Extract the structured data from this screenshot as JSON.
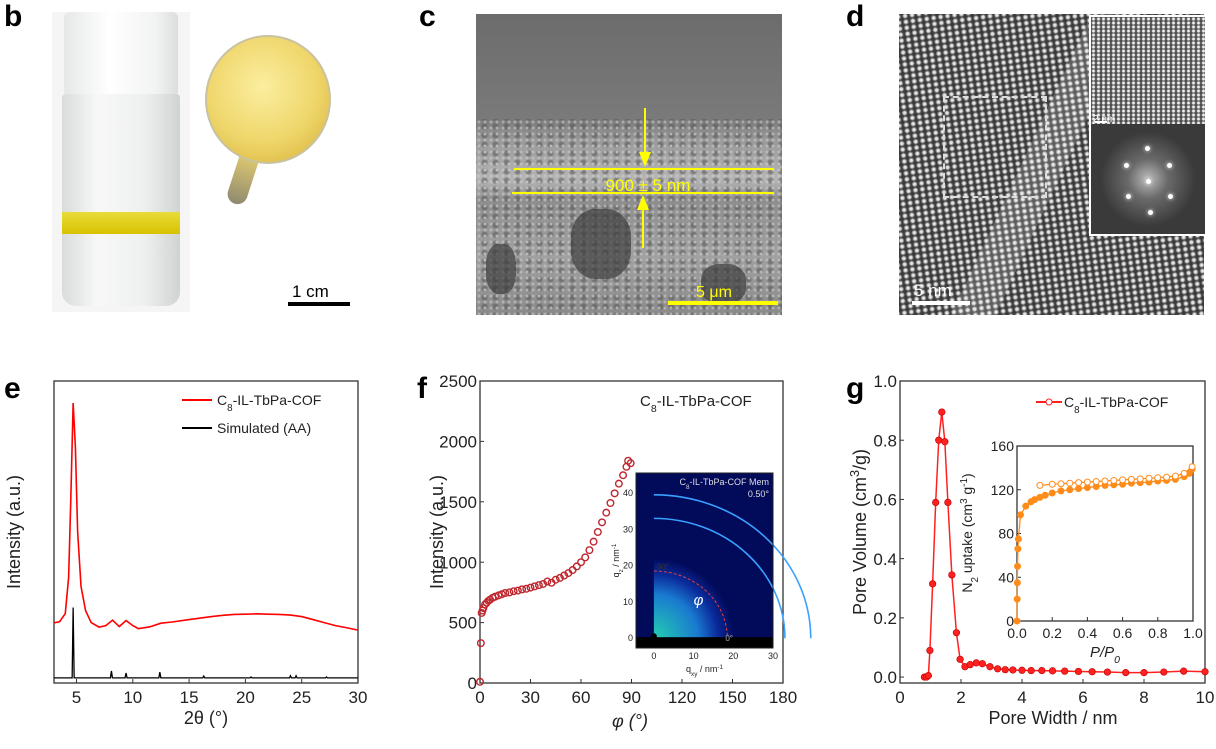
{
  "panels": {
    "b": {
      "label": "b",
      "scale_bar": "1 cm"
    },
    "c": {
      "label": "c",
      "thickness": "900 ± 5 nm",
      "scale_bar": "5 μm",
      "annotation_color": "#ffff00"
    },
    "d": {
      "label": "d",
      "scale_bar": "5 nm",
      "inset_scale_bar": "2 nm"
    },
    "e": {
      "label": "e"
    },
    "f": {
      "label": "f"
    },
    "g": {
      "label": "g"
    }
  },
  "chart_data": [
    {
      "panel": "e",
      "type": "line",
      "xlabel": "2θ (°)",
      "ylabel": "Intensity (a.u.)",
      "xlim": [
        3,
        30
      ],
      "ylim": [
        0,
        100
      ],
      "xticks": [
        "5",
        "10",
        "15",
        "20",
        "25",
        "30"
      ],
      "xtick_values": [
        5,
        10,
        15,
        20,
        25,
        30
      ],
      "grid": false,
      "legend_position": "top-right",
      "series": [
        {
          "name": {
            "prefix": "C",
            "sub": "8",
            "suffix": "-IL-TbPa-COF"
          },
          "color": "#ff0000",
          "points": [
            [
              3,
              19.9
            ],
            [
              3.5,
              20.3
            ],
            [
              4,
              23
            ],
            [
              4.3,
              35
            ],
            [
              4.5,
              62
            ],
            [
              4.7,
              92.7
            ],
            [
              4.9,
              78
            ],
            [
              5.1,
              50
            ],
            [
              5.4,
              32
            ],
            [
              5.8,
              24
            ],
            [
              6.3,
              20
            ],
            [
              7,
              18.5
            ],
            [
              7.6,
              19
            ],
            [
              8.2,
              20.8
            ],
            [
              8.8,
              18.7
            ],
            [
              9.4,
              20.7
            ],
            [
              10,
              19
            ],
            [
              10.5,
              18
            ],
            [
              11.5,
              18.6
            ],
            [
              12.5,
              19.8
            ],
            [
              13.5,
              20.2
            ],
            [
              15,
              21
            ],
            [
              16,
              21.5
            ],
            [
              17,
              22
            ],
            [
              18,
              22.4
            ],
            [
              19,
              22.7
            ],
            [
              20,
              22.8
            ],
            [
              21,
              22.9
            ],
            [
              22,
              22.8
            ],
            [
              23,
              22.7
            ],
            [
              24,
              22.5
            ],
            [
              25,
              22
            ],
            [
              26,
              21
            ],
            [
              27,
              20
            ],
            [
              28,
              19
            ],
            [
              29,
              18.3
            ],
            [
              30,
              17.5
            ]
          ]
        },
        {
          "name": "Simulated (AA)",
          "color": "#000000",
          "baseline": 1.7,
          "peaks": [
            [
              4.7,
              25
            ],
            [
              8.1,
              4.0
            ],
            [
              9.4,
              3.3
            ],
            [
              12.4,
              3.6
            ],
            [
              16.3,
              2.3
            ],
            [
              20.5,
              2.0
            ],
            [
              24,
              2.4
            ],
            [
              24.5,
              2.4
            ],
            [
              27.2,
              2.0
            ]
          ]
        }
      ]
    },
    {
      "panel": "f",
      "type": "scatter",
      "xlabel": "φ (°)",
      "ylabel": "Intensity (a.u.)",
      "xlim": [
        0,
        180
      ],
      "ylim": [
        0,
        2500
      ],
      "xticks": [
        "0",
        "30",
        "60",
        "90",
        "120",
        "150",
        "180"
      ],
      "xtick_values": [
        0,
        30,
        60,
        90,
        120,
        150,
        180
      ],
      "yticks": [
        "0",
        "500",
        "1000",
        "1500",
        "2000",
        "2500"
      ],
      "ytick_values": [
        0,
        500,
        1000,
        1500,
        2000,
        2500
      ],
      "grid": false,
      "annotation": {
        "prefix": "C",
        "sub": "8",
        "suffix": "-IL-TbPa-COF"
      },
      "marker": "open-circle",
      "color": "#c0262e",
      "points": [
        [
          0,
          10
        ],
        [
          0.5,
          330
        ],
        [
          1,
          580
        ],
        [
          1.5,
          600
        ],
        [
          2,
          620
        ],
        [
          3,
          650
        ],
        [
          4,
          665
        ],
        [
          5,
          680
        ],
        [
          6,
          690
        ],
        [
          7.5,
          705
        ],
        [
          9,
          715
        ],
        [
          11,
          725
        ],
        [
          13,
          735
        ],
        [
          15,
          745
        ],
        [
          17.5,
          750
        ],
        [
          20,
          760
        ],
        [
          22.5,
          765
        ],
        [
          25,
          775
        ],
        [
          27.5,
          780
        ],
        [
          30,
          790
        ],
        [
          32.5,
          800
        ],
        [
          35,
          810
        ],
        [
          37.5,
          820
        ],
        [
          40,
          840
        ],
        [
          42.5,
          830
        ],
        [
          45,
          855
        ],
        [
          47.5,
          870
        ],
        [
          50,
          890
        ],
        [
          52.5,
          910
        ],
        [
          55,
          935
        ],
        [
          57.5,
          965
        ],
        [
          60,
          1000
        ],
        [
          62.5,
          1040
        ],
        [
          65,
          1100
        ],
        [
          67.5,
          1170
        ],
        [
          70,
          1250
        ],
        [
          72.5,
          1330
        ],
        [
          75,
          1410
        ],
        [
          77.5,
          1490
        ],
        [
          80,
          1570
        ],
        [
          82.5,
          1650
        ],
        [
          85,
          1720
        ],
        [
          87,
          1790
        ],
        [
          88,
          1840
        ],
        [
          89.5,
          1820
        ]
      ],
      "inset": {
        "type": "heatmap",
        "title": {
          "prefix": "C",
          "sub": "8",
          "suffix": "-IL-TbPa-COF Mem"
        },
        "angle": "0.50°",
        "xlabel": {
          "main": "q",
          "sub": "xy",
          "unit": " / nm",
          "sup": "-1"
        },
        "ylabel": {
          "main": "q",
          "sub": "z",
          "unit": " / nm",
          "sup": "-1"
        },
        "xlim": [
          -4.5,
          30
        ],
        "ylim": [
          -2.7,
          45.5
        ],
        "xticks": [
          "0",
          "10",
          "20",
          "30"
        ],
        "xtick_values": [
          0,
          10,
          20,
          30
        ],
        "yticks": [
          "0",
          "10",
          "20",
          "30",
          "40"
        ],
        "ytick_values": [
          0,
          10,
          20,
          30,
          40
        ],
        "ring_radii": [
          18.5,
          33,
          39.5
        ],
        "marker_90": "90°",
        "marker_0": "0°",
        "phi": "φ",
        "colors": {
          "background": "#020a5a",
          "ring": "#3aa0ff",
          "hot": "#22d0b0"
        }
      }
    },
    {
      "panel": "g",
      "type": "line",
      "xlabel": "Pore Width / nm",
      "ylabel": {
        "main": "Pore Volume (cm",
        "sup": "3",
        "end": "/g)"
      },
      "xlim": [
        0,
        10
      ],
      "ylim": [
        -0.02,
        1.0
      ],
      "xticks": [
        "0",
        "2",
        "4",
        "6",
        "8",
        "10"
      ],
      "xtick_values": [
        0,
        2,
        4,
        6,
        8,
        10
      ],
      "yticks": [
        "0.0",
        "0.2",
        "0.4",
        "0.6",
        "0.8",
        "1.0"
      ],
      "ytick_values": [
        0,
        0.2,
        0.4,
        0.6,
        0.8,
        1.0
      ],
      "grid": false,
      "legend_position": "top-right",
      "series": [
        {
          "name": {
            "prefix": "C",
            "sub": "8",
            "suffix": "-IL-TbPa-COF"
          },
          "color": "#ff2020",
          "marker": "filled-circle",
          "points": [
            [
              0.8,
              0.0
            ],
            [
              0.87,
              0.0
            ],
            [
              0.93,
              0.005
            ],
            [
              0.98,
              0.09
            ],
            [
              1.07,
              0.315
            ],
            [
              1.17,
              0.59
            ],
            [
              1.27,
              0.8
            ],
            [
              1.37,
              0.895
            ],
            [
              1.47,
              0.795
            ],
            [
              1.57,
              0.59
            ],
            [
              1.7,
              0.345
            ],
            [
              1.85,
              0.15
            ],
            [
              1.97,
              0.06
            ],
            [
              2.13,
              0.035
            ],
            [
              2.3,
              0.042
            ],
            [
              2.5,
              0.048
            ],
            [
              2.7,
              0.045
            ],
            [
              2.95,
              0.035
            ],
            [
              3.2,
              0.028
            ],
            [
              3.45,
              0.025
            ],
            [
              3.7,
              0.024
            ],
            [
              4.0,
              0.023
            ],
            [
              4.3,
              0.022
            ],
            [
              4.65,
              0.022
            ],
            [
              5.0,
              0.021
            ],
            [
              5.4,
              0.02
            ],
            [
              5.85,
              0.019
            ],
            [
              6.3,
              0.018
            ],
            [
              6.8,
              0.017
            ],
            [
              7.4,
              0.015
            ],
            [
              8.0,
              0.015
            ],
            [
              8.65,
              0.017
            ],
            [
              9.3,
              0.02
            ],
            [
              10,
              0.018
            ]
          ]
        }
      ],
      "inset": {
        "type": "line",
        "xlabel": {
          "main": "P/P",
          "sub": "0"
        },
        "ylabel": {
          "main": "N",
          "sub": "2",
          "mid": " uptake (cm",
          "sup": "3",
          "mid2": " g",
          "sup2": "-1",
          "end": ")"
        },
        "xlim": [
          0,
          1
        ],
        "ylim": [
          0,
          160
        ],
        "xticks": [
          "0.0",
          "0.2",
          "0.4",
          "0.6",
          "0.8",
          "1.0"
        ],
        "xtick_values": [
          0,
          0.2,
          0.4,
          0.6,
          0.8,
          1.0
        ],
        "yticks": [
          "0",
          "40",
          "80",
          "120",
          "160"
        ],
        "ytick_values": [
          0,
          40,
          80,
          120,
          160
        ],
        "color": "#ff8c1a",
        "series": [
          {
            "marker": "filled-circle",
            "points": [
              [
                0,
                0
              ],
              [
                0.001,
                20
              ],
              [
                0.002,
                35
              ],
              [
                0.003,
                50
              ],
              [
                0.005,
                66
              ],
              [
                0.008,
                75
              ],
              [
                0.02,
                97
              ],
              [
                0.05,
                105
              ],
              [
                0.08,
                109
              ],
              [
                0.1,
                111
              ],
              [
                0.13,
                113
              ],
              [
                0.16,
                115
              ],
              [
                0.2,
                117
              ],
              [
                0.25,
                119
              ],
              [
                0.3,
                120
              ],
              [
                0.35,
                121
              ],
              [
                0.4,
                122
              ],
              [
                0.45,
                123
              ],
              [
                0.5,
                124
              ],
              [
                0.55,
                124.5
              ],
              [
                0.6,
                125
              ],
              [
                0.65,
                126
              ],
              [
                0.7,
                126.5
              ],
              [
                0.75,
                127
              ],
              [
                0.8,
                128
              ],
              [
                0.85,
                128.5
              ],
              [
                0.9,
                129.5
              ],
              [
                0.95,
                132
              ],
              [
                0.98,
                135
              ],
              [
                0.995,
                139
              ]
            ]
          },
          {
            "marker": "open-circle",
            "points": [
              [
                0.13,
                124
              ],
              [
                0.2,
                125
              ],
              [
                0.25,
                125.5
              ],
              [
                0.3,
                126
              ],
              [
                0.35,
                126.5
              ],
              [
                0.4,
                127
              ],
              [
                0.45,
                127.5
              ],
              [
                0.5,
                128
              ],
              [
                0.55,
                128.5
              ],
              [
                0.6,
                129
              ],
              [
                0.65,
                129.5
              ],
              [
                0.7,
                130
              ],
              [
                0.75,
                130.5
              ],
              [
                0.8,
                131
              ],
              [
                0.85,
                131.5
              ],
              [
                0.9,
                132.5
              ],
              [
                0.95,
                135
              ],
              [
                0.995,
                141
              ]
            ]
          }
        ]
      }
    }
  ]
}
